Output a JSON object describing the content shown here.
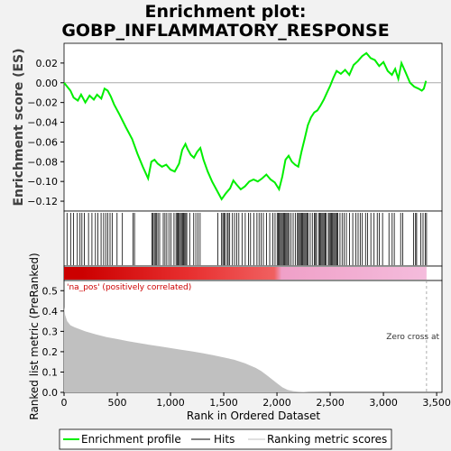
{
  "chart_data": {
    "type": "line",
    "title_line1": "Enrichment plot:",
    "title_line2": "GOBP_INFLAMMATORY_RESPONSE",
    "top_panel": {
      "ylabel": "Enrichment score (ES)",
      "ylim": [
        -0.13,
        0.04
      ],
      "yticks": [
        0.02,
        0.0,
        -0.02,
        -0.04,
        -0.06,
        -0.08,
        -0.1,
        -0.12
      ],
      "ytick_labels": [
        "0.02",
        "0.00",
        "−0.02",
        "−0.04",
        "−0.06",
        "−0.08",
        "−0.10",
        "−0.12"
      ],
      "series": {
        "name": "Enrichment profile",
        "color": "#00ee00",
        "x": [
          0,
          60,
          90,
          130,
          160,
          200,
          240,
          280,
          310,
          350,
          380,
          410,
          440,
          470,
          520,
          580,
          640,
          690,
          740,
          790,
          820,
          850,
          880,
          920,
          960,
          1000,
          1040,
          1080,
          1110,
          1140,
          1160,
          1190,
          1220,
          1250,
          1280,
          1310,
          1350,
          1390,
          1440,
          1480,
          1520,
          1560,
          1590,
          1620,
          1660,
          1700,
          1740,
          1780,
          1820,
          1860,
          1900,
          1940,
          1980,
          2020,
          2050,
          2080,
          2110,
          2140,
          2170,
          2200,
          2230,
          2260,
          2290,
          2320,
          2350,
          2380,
          2410,
          2440,
          2470,
          2500,
          2530,
          2560,
          2600,
          2640,
          2680,
          2720,
          2760,
          2800,
          2840,
          2880,
          2920,
          2960,
          3000,
          3040,
          3080,
          3110,
          3140,
          3170,
          3210,
          3250,
          3290,
          3330,
          3360,
          3380,
          3400
        ],
        "es": [
          0.0,
          -0.008,
          -0.015,
          -0.018,
          -0.012,
          -0.02,
          -0.013,
          -0.017,
          -0.012,
          -0.016,
          -0.006,
          -0.008,
          -0.014,
          -0.022,
          -0.032,
          -0.045,
          -0.057,
          -0.072,
          -0.085,
          -0.097,
          -0.08,
          -0.078,
          -0.082,
          -0.085,
          -0.083,
          -0.088,
          -0.09,
          -0.082,
          -0.068,
          -0.062,
          -0.067,
          -0.073,
          -0.076,
          -0.07,
          -0.066,
          -0.078,
          -0.09,
          -0.1,
          -0.11,
          -0.118,
          -0.112,
          -0.107,
          -0.099,
          -0.103,
          -0.108,
          -0.105,
          -0.1,
          -0.098,
          -0.1,
          -0.097,
          -0.093,
          -0.098,
          -0.101,
          -0.108,
          -0.095,
          -0.078,
          -0.074,
          -0.08,
          -0.083,
          -0.085,
          -0.07,
          -0.057,
          -0.043,
          -0.035,
          -0.03,
          -0.028,
          -0.023,
          -0.017,
          -0.01,
          -0.003,
          0.005,
          0.012,
          0.009,
          0.013,
          0.008,
          0.018,
          0.022,
          0.027,
          0.03,
          0.025,
          0.023,
          0.017,
          0.021,
          0.012,
          0.008,
          0.014,
          0.004,
          0.02,
          0.01,
          0.0,
          -0.004,
          -0.006,
          -0.008,
          -0.006,
          0.002
        ]
      }
    },
    "hits": {
      "name": "Hits",
      "positions": [
        28,
        62,
        90,
        125,
        150,
        168,
        190,
        230,
        262,
        295,
        318,
        348,
        372,
        392,
        410,
        432,
        452,
        498,
        548,
        648,
        662,
        825,
        836,
        848,
        858,
        870,
        882,
        898,
        932,
        948,
        965,
        985,
        1004,
        1033,
        1052,
        1062,
        1072,
        1082,
        1093,
        1103,
        1113,
        1123,
        1133,
        1143,
        1153,
        1180,
        1218,
        1238,
        1258,
        1278,
        1445,
        1480,
        1492,
        1502,
        1512,
        1532,
        1542,
        1556,
        1582,
        1602,
        1622,
        1642,
        1672,
        1702,
        1732,
        1752,
        1782,
        1812,
        1832,
        1852,
        1872,
        1902,
        1932,
        1962,
        1982,
        2002,
        2012,
        2022,
        2032,
        2042,
        2052,
        2062,
        2072,
        2082,
        2092,
        2102,
        2112,
        2132,
        2152,
        2172,
        2192,
        2202,
        2212,
        2222,
        2232,
        2242,
        2252,
        2262,
        2272,
        2282,
        2292,
        2312,
        2332,
        2352,
        2362,
        2372,
        2392,
        2402,
        2412,
        2422,
        2432,
        2442,
        2452,
        2462,
        2482,
        2492,
        2502,
        2512,
        2522,
        2532,
        2542,
        2552,
        2562,
        2572,
        2592,
        2612,
        2632,
        2652,
        2682,
        2712,
        2742,
        2762,
        2782,
        2802,
        2832,
        2852,
        2882,
        2912,
        2942,
        2962,
        2992,
        3052,
        3082,
        3102,
        3162,
        3182,
        3282,
        3302,
        3312,
        3352,
        3372,
        3392,
        3405
      ]
    },
    "ranked_metric": {
      "ylabel": "Ranked list metric (PreRanked)",
      "xlabel": "Rank in Ordered Dataset",
      "ylim": [
        0,
        0.55
      ],
      "yticks": [
        0.0,
        0.1,
        0.2,
        0.3,
        0.4,
        0.5
      ],
      "ytick_labels": [
        "0.0",
        "0.1",
        "0.2",
        "0.3",
        "0.4",
        "0.5"
      ],
      "xlim": [
        0,
        3550
      ],
      "xticks": [
        0,
        500,
        1000,
        1500,
        2000,
        2500,
        3000,
        3500
      ],
      "xtick_labels": [
        "0",
        "500",
        "1,000",
        "1,500",
        "2,000",
        "2,500",
        "3,000",
        "3,500"
      ],
      "x": [
        0,
        10,
        30,
        60,
        100,
        150,
        200,
        300,
        400,
        500,
        600,
        700,
        800,
        900,
        1000,
        1100,
        1200,
        1300,
        1400,
        1500,
        1600,
        1700,
        1800,
        1850,
        1900,
        1950,
        2000,
        2050,
        2100,
        2150,
        2200,
        2300,
        2500,
        3000,
        3405
      ],
      "values": [
        0.42,
        0.38,
        0.35,
        0.33,
        0.32,
        0.31,
        0.3,
        0.285,
        0.272,
        0.262,
        0.252,
        0.243,
        0.234,
        0.226,
        0.218,
        0.21,
        0.202,
        0.193,
        0.183,
        0.172,
        0.16,
        0.143,
        0.12,
        0.105,
        0.086,
        0.065,
        0.045,
        0.025,
        0.012,
        0.006,
        0.003,
        0.001,
        0.0,
        0.0,
        0.0
      ],
      "fill_color": "#c0c0c0",
      "annotation_pos": "'na_pos' (positively correlated)",
      "annotation_zero": "Zero cross at",
      "zero_cross_x": 3405
    },
    "heat_bar": {
      "colors": [
        "#cc0000",
        "#e83030",
        "#f06060",
        "#f0a0c8",
        "#f4bcdc"
      ],
      "stops": [
        0.05,
        0.35,
        0.58,
        0.6,
        1.0
      ]
    },
    "legend": [
      {
        "label": "Enrichment profile",
        "color": "#00ee00",
        "kind": "line"
      },
      {
        "label": "Hits",
        "color": "#000000",
        "kind": "line"
      },
      {
        "label": "Ranking metric scores",
        "color": "#c0c0c0",
        "kind": "line"
      }
    ],
    "n_genes": 3405
  }
}
